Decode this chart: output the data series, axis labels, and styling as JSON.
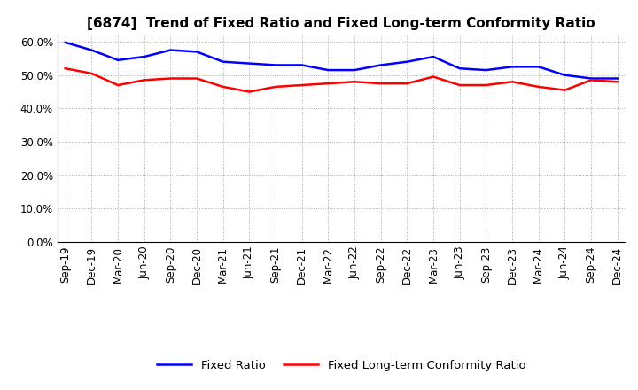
{
  "title": "[6874]  Trend of Fixed Ratio and Fixed Long-term Conformity Ratio",
  "x_labels": [
    "Sep-19",
    "Dec-19",
    "Mar-20",
    "Jun-20",
    "Sep-20",
    "Dec-20",
    "Mar-21",
    "Jun-21",
    "Sep-21",
    "Dec-21",
    "Mar-22",
    "Jun-22",
    "Sep-22",
    "Dec-22",
    "Mar-23",
    "Jun-23",
    "Sep-23",
    "Dec-23",
    "Mar-24",
    "Jun-24",
    "Sep-24",
    "Dec-24"
  ],
  "fixed_ratio": [
    59.8,
    57.5,
    54.5,
    55.5,
    57.5,
    57.0,
    54.0,
    53.5,
    53.0,
    53.0,
    51.5,
    51.5,
    53.0,
    54.0,
    55.5,
    52.0,
    51.5,
    52.5,
    52.5,
    50.0,
    49.0,
    49.0
  ],
  "fixed_lt_ratio": [
    52.0,
    50.5,
    47.0,
    48.5,
    49.0,
    49.0,
    46.5,
    45.0,
    46.5,
    47.0,
    47.5,
    48.0,
    47.5,
    47.5,
    49.5,
    47.0,
    47.0,
    48.0,
    46.5,
    45.5,
    48.5,
    48.0
  ],
  "fixed_ratio_color": "#0000FF",
  "fixed_lt_ratio_color": "#FF0000",
  "ylim": [
    0,
    62
  ],
  "yticks": [
    0,
    10,
    20,
    30,
    40,
    50,
    60
  ],
  "ytick_labels": [
    "0.0%",
    "10.0%",
    "20.0%",
    "30.0%",
    "40.0%",
    "50.0%",
    "60.0%"
  ],
  "background_color": "#FFFFFF",
  "plot_bg_color": "#FFFFFF",
  "grid_color": "#AAAAAA",
  "legend_fixed_ratio": "Fixed Ratio",
  "legend_fixed_lt_ratio": "Fixed Long-term Conformity Ratio",
  "line_width": 1.8,
  "title_fontsize": 11,
  "tick_fontsize": 8.5,
  "legend_fontsize": 9.5
}
